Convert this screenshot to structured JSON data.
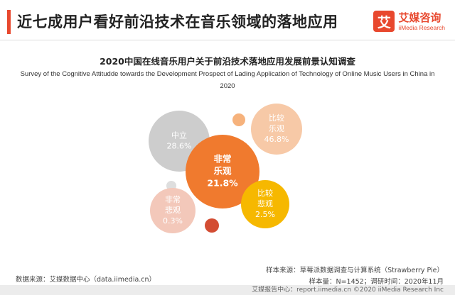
{
  "header": {
    "title": "近七成用户看好前沿技术在音乐领域的落地应用",
    "logo_mark": "艾",
    "logo_cn": "艾媒咨询",
    "logo_en": "iiMedia Research"
  },
  "colors": {
    "accent": "#e8482e",
    "very_optimistic": "#f07a2e",
    "optimistic": "#f7c9a7",
    "neutral": "#cdcdcd",
    "pessimistic": "#f6b800",
    "very_pessimistic": "#f3c8ba",
    "decor_orange": "#f6b27c",
    "decor_gray": "#dedede",
    "decor_red": "#d34d33"
  },
  "chart_data": {
    "type": "bubble",
    "title": "2020中国在线音乐用户关于前沿技术落地应用发展前景认知调查",
    "subtitle": "Survey of the Cognitive Attitudde towards the Development Prospect of Lading Application of Technology of Online Music Users in China in 2020",
    "unit": "%",
    "categories": [
      "非常乐观",
      "比较乐观",
      "中立",
      "比较悲观",
      "非常悲观"
    ],
    "values": [
      21.8,
      46.8,
      28.6,
      2.5,
      0.3
    ],
    "labels": [
      "21.8%",
      "46.8%",
      "28.6%",
      "2.5%",
      "0.3%"
    ]
  },
  "footer": {
    "source_left": "数据来源：艾媒数据中心（data.iimedia.cn）",
    "sample_source": "样本来源：草莓派数据调查与计算系统（Strawberry Pie）",
    "sample_size": "样本量：N=1452；调研时间：2020年11月",
    "report": "艾媒报告中心：report.iimedia.cn ©2020  iiMedia Research  Inc"
  }
}
